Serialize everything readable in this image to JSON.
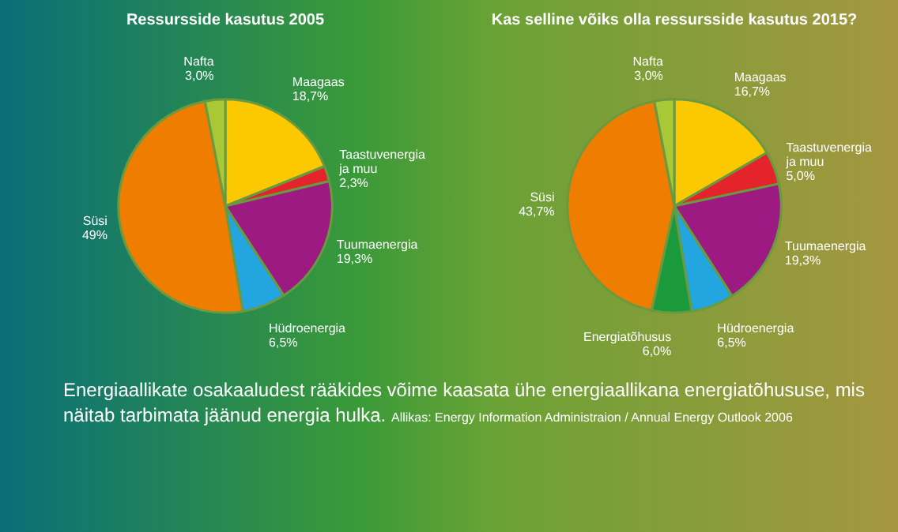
{
  "chart_data": [
    {
      "type": "pie",
      "title": "Ressursside kasutus 2005",
      "categories": [
        "Maagaas",
        "Taastuvenergia\nja muu",
        "Tuumaenergia",
        "Hüdroenergia",
        "Süsi",
        "Nafta"
      ],
      "values": [
        18.7,
        2.3,
        19.3,
        6.5,
        49,
        3.0
      ],
      "value_labels": [
        "18,7%",
        "2,3%",
        "19,3%",
        "6,5%",
        "49%",
        "3,0%"
      ],
      "colors": [
        "#fcc800",
        "#e4232b",
        "#9c1a82",
        "#23a5e0",
        "#ef7d00",
        "#a8c836"
      ],
      "annotations": [
        "Energiaallikate osakaaludest rääkides võime kaasata ühe energiaallikana energiatõhususe, mis näitab tarbimata jäänud energia hulka.",
        "Allikas: Energy Information Administraion / Annual Energy Outlook 2006"
      ]
    },
    {
      "type": "pie",
      "title": "Kas selline võiks olla ressursside kasutus 2015?",
      "categories": [
        "Maagaas",
        "Taastuvenergia\nja muu",
        "Tuumaenergia",
        "Hüdroenergia",
        "Energiatõhusus",
        "Süsi",
        "Nafta"
      ],
      "values": [
        16.7,
        5.0,
        19.3,
        6.5,
        6.0,
        43.7,
        3.0
      ],
      "value_labels": [
        "16,7%",
        "5,0%",
        "19,3%",
        "6,5%",
        "6,0%",
        "43,7%",
        "3,0%"
      ],
      "colors": [
        "#fcc800",
        "#e4232b",
        "#9c1a82",
        "#23a5e0",
        "#1b9a3c",
        "#ef7d00",
        "#a8c836"
      ]
    }
  ]
}
